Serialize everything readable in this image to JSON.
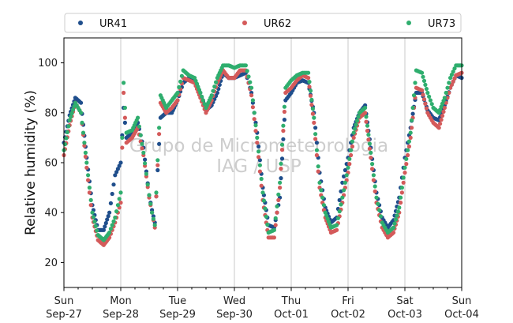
{
  "chart_data": {
    "type": "scatter",
    "ylabel": "Relative humidity (%)",
    "xlabel": "",
    "ylim": [
      10,
      110
    ],
    "xlim": [
      0,
      7
    ],
    "yticks": [
      20,
      40,
      60,
      80,
      100
    ],
    "xticks": [
      {
        "x": 0,
        "day": "Sun",
        "date": "Sep-27"
      },
      {
        "x": 1,
        "day": "Mon",
        "date": "Sep-28"
      },
      {
        "x": 2,
        "day": "Tue",
        "date": "Sep-29"
      },
      {
        "x": 3,
        "day": "Wed",
        "date": "Sep-30"
      },
      {
        "x": 4,
        "day": "Thu",
        "date": "Oct-01"
      },
      {
        "x": 5,
        "day": "Fri",
        "date": "Oct-02"
      },
      {
        "x": 6,
        "day": "Sat",
        "date": "Oct-03"
      },
      {
        "x": 7,
        "day": "Sun",
        "date": "Oct-04"
      }
    ],
    "grid": "vertical",
    "legend_position": "top",
    "watermark": [
      "Grupo de Micrometeorologia",
      "IAG / USP"
    ],
    "series": [
      {
        "name": "UR41",
        "color": "#1f4e8c",
        "points": [
          [
            0.0,
            68
          ],
          [
            0.1,
            79
          ],
          [
            0.2,
            86
          ],
          [
            0.3,
            84
          ],
          [
            0.4,
            62
          ],
          [
            0.5,
            43
          ],
          [
            0.6,
            33
          ],
          [
            0.7,
            33
          ],
          [
            0.8,
            40
          ],
          [
            0.9,
            55
          ],
          [
            1.0,
            60
          ],
          [
            1.05,
            82
          ],
          [
            1.1,
            70
          ],
          [
            1.2,
            72
          ],
          [
            1.3,
            76
          ],
          [
            1.4,
            66
          ],
          [
            1.5,
            47
          ],
          [
            1.55,
            41
          ],
          [
            1.6,
            36
          ],
          [
            1.7,
            78
          ],
          [
            1.8,
            80
          ],
          [
            1.9,
            80
          ],
          [
            2.0,
            85
          ],
          [
            2.1,
            92
          ],
          [
            2.2,
            94
          ],
          [
            2.3,
            93
          ],
          [
            2.4,
            88
          ],
          [
            2.5,
            81
          ],
          [
            2.6,
            83
          ],
          [
            2.7,
            88
          ],
          [
            2.8,
            96
          ],
          [
            2.9,
            94
          ],
          [
            3.0,
            94
          ],
          [
            3.1,
            95
          ],
          [
            3.2,
            96
          ],
          [
            3.3,
            88
          ],
          [
            3.4,
            72
          ],
          [
            3.5,
            50
          ],
          [
            3.6,
            35
          ],
          [
            3.7,
            34
          ],
          [
            3.8,
            46
          ],
          [
            3.9,
            85
          ],
          [
            4.0,
            88
          ],
          [
            4.1,
            92
          ],
          [
            4.2,
            93
          ],
          [
            4.3,
            92
          ],
          [
            4.4,
            80
          ],
          [
            4.5,
            56
          ],
          [
            4.6,
            42
          ],
          [
            4.7,
            36
          ],
          [
            4.8,
            38
          ],
          [
            4.9,
            52
          ],
          [
            5.0,
            62
          ],
          [
            5.1,
            74
          ],
          [
            5.2,
            80
          ],
          [
            5.3,
            83
          ],
          [
            5.4,
            66
          ],
          [
            5.5,
            48
          ],
          [
            5.6,
            38
          ],
          [
            5.7,
            34
          ],
          [
            5.8,
            37
          ],
          [
            5.9,
            46
          ],
          [
            6.0,
            62
          ],
          [
            6.1,
            74
          ],
          [
            6.2,
            88
          ],
          [
            6.3,
            88
          ],
          [
            6.4,
            81
          ],
          [
            6.5,
            78
          ],
          [
            6.6,
            77
          ],
          [
            6.7,
            83
          ],
          [
            6.8,
            90
          ],
          [
            6.9,
            95
          ],
          [
            7.0,
            94
          ]
        ]
      },
      {
        "name": "UR62",
        "color": "#d45a5a",
        "points": [
          [
            0.0,
            63
          ],
          [
            0.1,
            75
          ],
          [
            0.2,
            84
          ],
          [
            0.3,
            80
          ],
          [
            0.4,
            58
          ],
          [
            0.5,
            38
          ],
          [
            0.6,
            29
          ],
          [
            0.7,
            27
          ],
          [
            0.8,
            30
          ],
          [
            0.9,
            36
          ],
          [
            1.0,
            44
          ],
          [
            1.05,
            88
          ],
          [
            1.1,
            68
          ],
          [
            1.2,
            70
          ],
          [
            1.3,
            74
          ],
          [
            1.4,
            63
          ],
          [
            1.5,
            46
          ],
          [
            1.55,
            40
          ],
          [
            1.6,
            34
          ],
          [
            1.7,
            84
          ],
          [
            1.8,
            80
          ],
          [
            1.9,
            82
          ],
          [
            2.0,
            85
          ],
          [
            2.1,
            94
          ],
          [
            2.2,
            93
          ],
          [
            2.3,
            92
          ],
          [
            2.4,
            86
          ],
          [
            2.5,
            80
          ],
          [
            2.6,
            85
          ],
          [
            2.7,
            92
          ],
          [
            2.8,
            97
          ],
          [
            2.9,
            94
          ],
          [
            3.0,
            94
          ],
          [
            3.1,
            97
          ],
          [
            3.2,
            97
          ],
          [
            3.3,
            87
          ],
          [
            3.4,
            68
          ],
          [
            3.5,
            45
          ],
          [
            3.6,
            30
          ],
          [
            3.7,
            30
          ],
          [
            3.8,
            50
          ],
          [
            3.9,
            88
          ],
          [
            4.0,
            90
          ],
          [
            4.1,
            93
          ],
          [
            4.2,
            95
          ],
          [
            4.3,
            94
          ],
          [
            4.4,
            76
          ],
          [
            4.5,
            50
          ],
          [
            4.6,
            38
          ],
          [
            4.7,
            32
          ],
          [
            4.8,
            33
          ],
          [
            4.9,
            44
          ],
          [
            5.0,
            56
          ],
          [
            5.1,
            70
          ],
          [
            5.2,
            78
          ],
          [
            5.3,
            80
          ],
          [
            5.4,
            62
          ],
          [
            5.5,
            44
          ],
          [
            5.6,
            34
          ],
          [
            5.7,
            30
          ],
          [
            5.8,
            32
          ],
          [
            5.9,
            40
          ],
          [
            6.0,
            56
          ],
          [
            6.1,
            70
          ],
          [
            6.2,
            90
          ],
          [
            6.3,
            89
          ],
          [
            6.4,
            80
          ],
          [
            6.5,
            76
          ],
          [
            6.6,
            74
          ],
          [
            6.7,
            82
          ],
          [
            6.8,
            90
          ],
          [
            6.9,
            95
          ],
          [
            7.0,
            96
          ]
        ]
      },
      {
        "name": "UR73",
        "color": "#2fae6e",
        "points": [
          [
            0.0,
            65
          ],
          [
            0.1,
            77
          ],
          [
            0.2,
            84
          ],
          [
            0.3,
            80
          ],
          [
            0.4,
            60
          ],
          [
            0.5,
            40
          ],
          [
            0.6,
            31
          ],
          [
            0.7,
            29
          ],
          [
            0.8,
            32
          ],
          [
            0.9,
            38
          ],
          [
            1.0,
            48
          ],
          [
            1.05,
            92
          ],
          [
            1.1,
            72
          ],
          [
            1.2,
            73
          ],
          [
            1.3,
            78
          ],
          [
            1.4,
            64
          ],
          [
            1.5,
            47
          ],
          [
            1.55,
            40
          ],
          [
            1.6,
            35
          ],
          [
            1.7,
            87
          ],
          [
            1.8,
            82
          ],
          [
            1.9,
            85
          ],
          [
            2.0,
            88
          ],
          [
            2.1,
            97
          ],
          [
            2.2,
            95
          ],
          [
            2.3,
            94
          ],
          [
            2.4,
            88
          ],
          [
            2.5,
            82
          ],
          [
            2.6,
            87
          ],
          [
            2.7,
            94
          ],
          [
            2.8,
            99
          ],
          [
            2.9,
            99
          ],
          [
            3.0,
            98
          ],
          [
            3.1,
            99
          ],
          [
            3.2,
            99
          ],
          [
            3.3,
            90
          ],
          [
            3.4,
            70
          ],
          [
            3.5,
            48
          ],
          [
            3.6,
            32
          ],
          [
            3.7,
            33
          ],
          [
            3.8,
            52
          ],
          [
            3.9,
            90
          ],
          [
            4.0,
            93
          ],
          [
            4.1,
            95
          ],
          [
            4.2,
            96
          ],
          [
            4.3,
            96
          ],
          [
            4.4,
            78
          ],
          [
            4.5,
            52
          ],
          [
            4.6,
            40
          ],
          [
            4.7,
            34
          ],
          [
            4.8,
            35
          ],
          [
            4.9,
            46
          ],
          [
            5.0,
            58
          ],
          [
            5.1,
            72
          ],
          [
            5.2,
            80
          ],
          [
            5.3,
            82
          ],
          [
            5.4,
            64
          ],
          [
            5.5,
            46
          ],
          [
            5.6,
            36
          ],
          [
            5.7,
            32
          ],
          [
            5.8,
            34
          ],
          [
            5.9,
            42
          ],
          [
            6.0,
            58
          ],
          [
            6.1,
            72
          ],
          [
            6.2,
            97
          ],
          [
            6.3,
            96
          ],
          [
            6.4,
            88
          ],
          [
            6.5,
            82
          ],
          [
            6.6,
            80
          ],
          [
            6.7,
            86
          ],
          [
            6.8,
            94
          ],
          [
            6.9,
            99
          ],
          [
            7.0,
            99
          ]
        ]
      }
    ]
  }
}
